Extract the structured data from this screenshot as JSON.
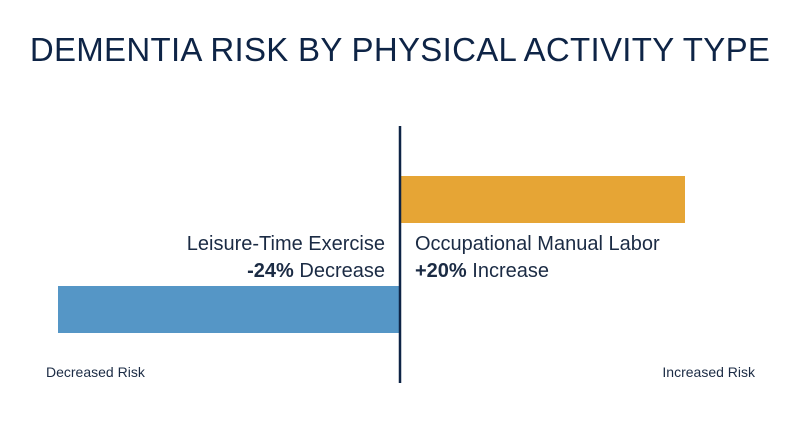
{
  "chart_data": {
    "type": "bar",
    "orientation": "horizontal-diverging",
    "title": "DEMENTIA RISK BY PHYSICAL ACTIVITY TYPE",
    "categories": [
      "Occupational Manual Labor",
      "Leisure-Time Exercise"
    ],
    "values": [
      20,
      -24
    ],
    "value_labels": [
      "+20%",
      "-24%"
    ],
    "direction_words": [
      "Increase",
      "Decrease"
    ],
    "unit": "%",
    "xlim": [
      -32,
      32
    ],
    "axis_end_labels": {
      "negative": "Decreased Risk",
      "positive": "Increased Risk"
    },
    "grid": false,
    "legend": "none"
  },
  "colors": {
    "title": "#0e2446",
    "text": "#1b2b44",
    "positive_bar": "#e6a535",
    "negative_bar": "#5596c6",
    "zero_line": "#0e2446"
  }
}
